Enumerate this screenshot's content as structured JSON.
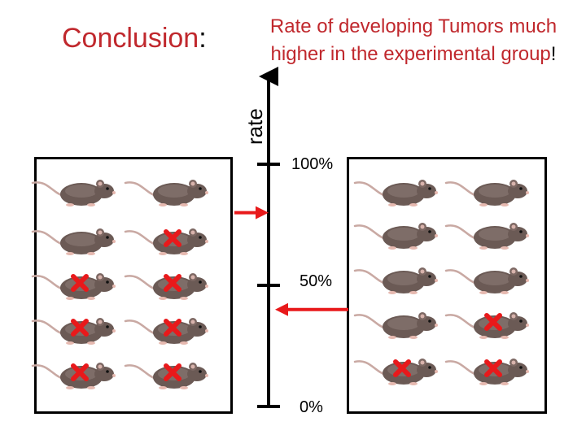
{
  "title": {
    "word": "Conclusion",
    "punct": ":"
  },
  "headline": {
    "line1": "Rate of developing Tumors much",
    "line2_main": "higher in the experimental group",
    "line2_punct": "!"
  },
  "axis": {
    "label": "rate",
    "ticks": [
      {
        "label": "100%",
        "value": 100
      },
      {
        "label": "50%",
        "value": 50
      },
      {
        "label": "0%",
        "value": 0
      }
    ]
  },
  "colors": {
    "accent": "#c0282d",
    "marker": "#e8191b",
    "mouse_body": "#6b5a55",
    "axis": "#000000"
  },
  "groups": {
    "left": {
      "mice_per_column": 5,
      "columns": 2,
      "tumor_marks": [
        [
          false,
          false
        ],
        [
          false,
          true
        ],
        [
          true,
          true
        ],
        [
          true,
          true
        ],
        [
          true,
          true
        ]
      ],
      "arrow_direction": "right",
      "arrow_level": 80
    },
    "right": {
      "mice_per_column": 5,
      "columns": 2,
      "tumor_marks": [
        [
          false,
          false
        ],
        [
          false,
          false
        ],
        [
          false,
          false
        ],
        [
          false,
          true
        ],
        [
          true,
          true
        ]
      ],
      "arrow_direction": "left",
      "arrow_level": 40
    }
  }
}
